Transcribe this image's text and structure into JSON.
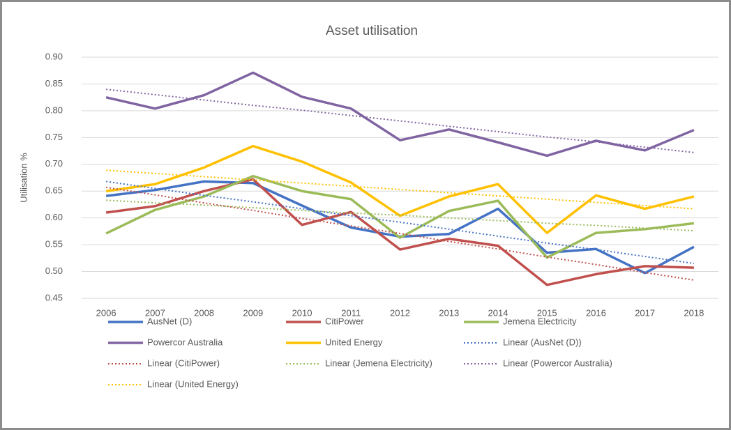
{
  "chart_data": {
    "type": "line",
    "title": "Asset utilisation",
    "y_label": "Utilisation %",
    "categories": [
      "2006",
      "2007",
      "2008",
      "2009",
      "2010",
      "2011",
      "2012",
      "2013",
      "2014",
      "2015",
      "2016",
      "2017",
      "2018"
    ],
    "ylim": [
      0.45,
      0.9
    ],
    "yticks": [
      {
        "value": 0.45,
        "label": "0.45"
      },
      {
        "value": 0.5,
        "label": "0.50"
      },
      {
        "value": 0.55,
        "label": "0.55"
      },
      {
        "value": 0.6,
        "label": "0.60"
      },
      {
        "value": 0.65,
        "label": "0.65"
      },
      {
        "value": 0.7,
        "label": "0.70"
      },
      {
        "value": 0.75,
        "label": "0.75"
      },
      {
        "value": 0.8,
        "label": "0.80"
      },
      {
        "value": 0.85,
        "label": "0.85"
      },
      {
        "value": 0.9,
        "label": "0.90"
      }
    ],
    "grid": true,
    "legend": "bottom",
    "series": [
      {
        "name": "AusNet (D)",
        "color": "#4472c4",
        "style": "solid",
        "values": [
          0.641,
          0.652,
          0.668,
          0.665,
          0.623,
          0.582,
          0.565,
          0.57,
          0.617,
          0.535,
          0.542,
          0.497,
          0.546
        ]
      },
      {
        "name": "CitiPower",
        "color": "#c0504d",
        "style": "solid",
        "values": [
          0.61,
          0.622,
          0.65,
          0.672,
          0.587,
          0.611,
          0.541,
          0.561,
          0.548,
          0.475,
          0.495,
          0.51,
          0.507
        ]
      },
      {
        "name": "Jemena Electricity",
        "color": "#9bbb59",
        "style": "solid",
        "values": [
          0.571,
          0.615,
          0.64,
          0.678,
          0.65,
          0.635,
          0.563,
          0.613,
          0.632,
          0.526,
          0.572,
          0.579,
          0.59
        ]
      },
      {
        "name": "Powercor Australia",
        "color": "#8064a2",
        "style": "solid",
        "values": [
          0.825,
          0.804,
          0.829,
          0.871,
          0.826,
          0.804,
          0.745,
          0.765,
          0.741,
          0.716,
          0.744,
          0.726,
          0.764
        ]
      },
      {
        "name": "United Energy",
        "color": "#ffc000",
        "style": "solid",
        "values": [
          0.65,
          0.663,
          0.694,
          0.734,
          0.705,
          0.666,
          0.604,
          0.64,
          0.663,
          0.572,
          0.642,
          0.617,
          0.64
        ]
      },
      {
        "name": "Linear (AusNet (D))",
        "color": "#4472c4",
        "style": "dotted",
        "values": [
          0.668,
          0.655,
          0.642,
          0.63,
          0.617,
          0.604,
          0.592,
          0.579,
          0.566,
          0.553,
          0.541,
          0.528,
          0.515
        ]
      },
      {
        "name": "Linear (CitiPower)",
        "color": "#c0504d",
        "style": "dotted",
        "values": [
          0.657,
          0.643,
          0.628,
          0.614,
          0.599,
          0.585,
          0.571,
          0.556,
          0.542,
          0.527,
          0.513,
          0.498,
          0.484
        ]
      },
      {
        "name": "Linear (Jemena Electricity)",
        "color": "#9bbb59",
        "style": "dotted",
        "values": [
          0.633,
          0.628,
          0.624,
          0.619,
          0.614,
          0.609,
          0.605,
          0.6,
          0.595,
          0.59,
          0.586,
          0.581,
          0.576
        ]
      },
      {
        "name": "Linear (Powercor Australia)",
        "color": "#8064a2",
        "style": "dotted",
        "values": [
          0.84,
          0.83,
          0.82,
          0.81,
          0.801,
          0.791,
          0.781,
          0.771,
          0.761,
          0.751,
          0.742,
          0.732,
          0.722
        ]
      },
      {
        "name": "Linear (United Energy)",
        "color": "#ffc000",
        "style": "dotted",
        "values": [
          0.689,
          0.683,
          0.677,
          0.671,
          0.665,
          0.659,
          0.653,
          0.647,
          0.641,
          0.635,
          0.629,
          0.623,
          0.617
        ]
      }
    ]
  }
}
